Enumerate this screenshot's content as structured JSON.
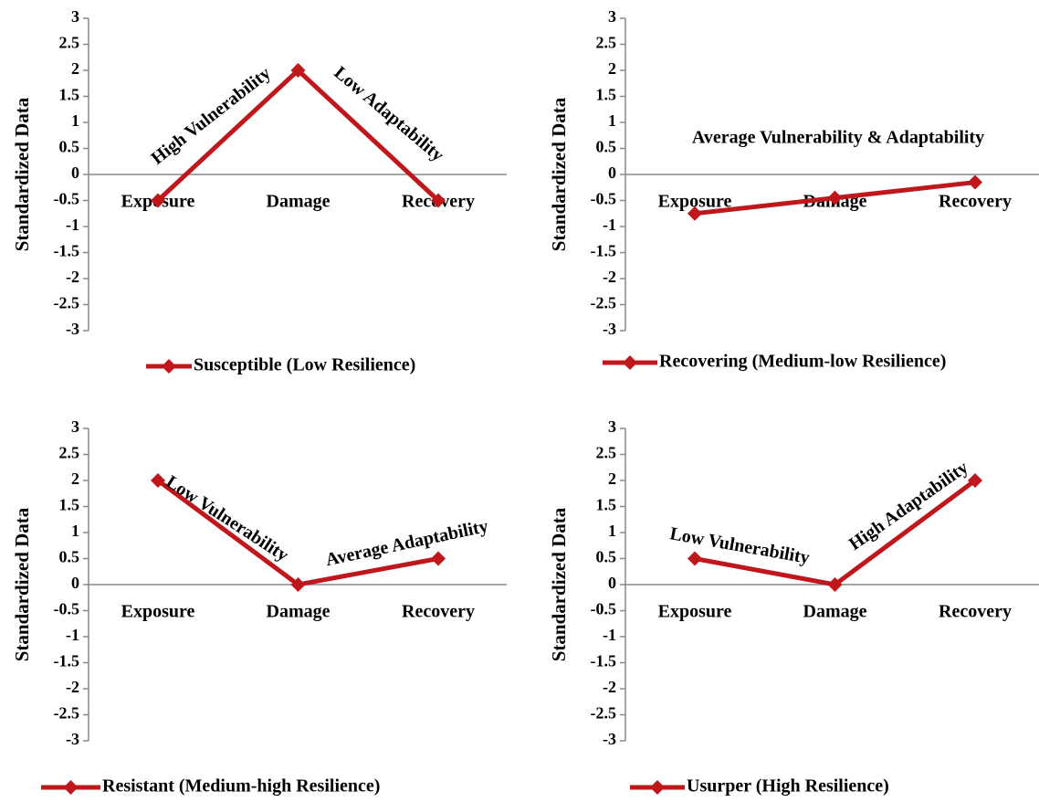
{
  "chart_data": [
    {
      "type": "line",
      "y_label": "Standardized Data",
      "categories": [
        "Exposure",
        "Damage",
        "Recovery"
      ],
      "series": [
        {
          "name": "Susceptible (Low Resilience)",
          "color": "#c0171d",
          "values": [
            -0.5,
            2,
            -0.5
          ]
        }
      ],
      "ylim": [
        -3,
        3
      ],
      "yticks": [
        3,
        2.5,
        2,
        1.5,
        1,
        0.5,
        0,
        -0.5,
        -1,
        -1.5,
        -2,
        -2.5,
        -3
      ],
      "annotations": [
        "High Vulnerability",
        "Low Adaptability"
      ]
    },
    {
      "type": "line",
      "y_label": "Standardized Data",
      "categories": [
        "Exposure",
        "Damage",
        "Recovery"
      ],
      "series": [
        {
          "name": "Recovering (Medium-low Resilience)",
          "color": "#c0171d",
          "values": [
            -0.75,
            -0.45,
            -0.15
          ]
        }
      ],
      "ylim": [
        -3,
        3
      ],
      "yticks": [
        3,
        2.5,
        2,
        1.5,
        1,
        0.5,
        0,
        -0.5,
        -1,
        -1.5,
        -2,
        -2.5,
        -3
      ],
      "annotations": [
        "Average Vulnerability & Adaptability"
      ]
    },
    {
      "type": "line",
      "y_label": "Standardized Data",
      "categories": [
        "Exposure",
        "Damage",
        "Recovery"
      ],
      "series": [
        {
          "name": "Resistant (Medium-high Resilience)",
          "color": "#c0171d",
          "values": [
            2,
            0,
            0.5
          ]
        }
      ],
      "ylim": [
        -3,
        3
      ],
      "yticks": [
        3,
        2.5,
        2,
        1.5,
        1,
        0.5,
        0,
        -0.5,
        -1,
        -1.5,
        -2,
        -2.5,
        -3
      ],
      "annotations": [
        "Low Vulnerability",
        "Average Adaptability"
      ]
    },
    {
      "type": "line",
      "y_label": "Standardized Data",
      "categories": [
        "Exposure",
        "Damage",
        "Recovery"
      ],
      "series": [
        {
          "name": "Usurper (High Resilience)",
          "color": "#c0171d",
          "values": [
            0.5,
            0,
            2
          ]
        }
      ],
      "ylim": [
        -3,
        3
      ],
      "yticks": [
        3,
        2.5,
        2,
        1.5,
        1,
        0.5,
        0,
        -0.5,
        -1,
        -1.5,
        -2,
        -2.5,
        -3
      ],
      "annotations": [
        "Low Vulnerability",
        "High Adaptability"
      ]
    }
  ]
}
